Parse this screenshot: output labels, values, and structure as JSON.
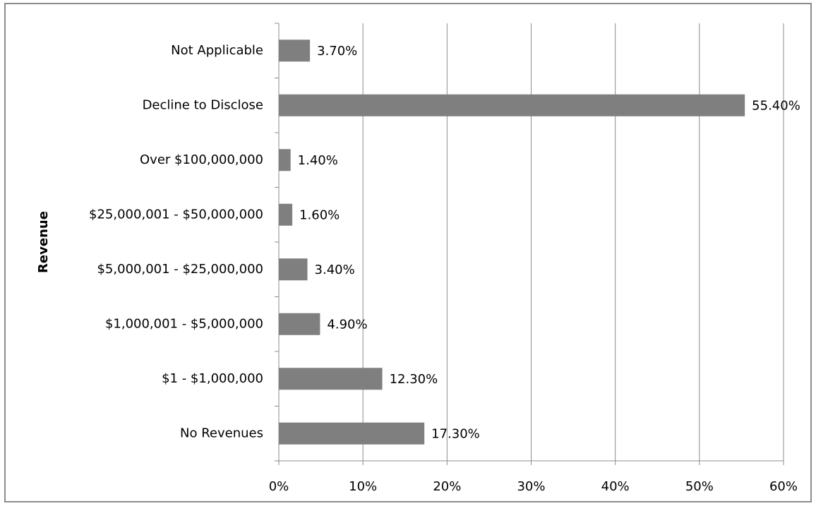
{
  "chart_data": {
    "type": "bar",
    "orientation": "horizontal",
    "y_axis_label": "Revenue",
    "categories": [
      "Not Applicable",
      "Decline to Disclose",
      "Over $100,000,000",
      "$25,000,001 - $50,000,000",
      "$5,000,001 - $25,000,000",
      "$1,000,001 - $5,000,000",
      "$1 - $1,000,000",
      "No Revenues"
    ],
    "values": [
      3.7,
      55.4,
      1.4,
      1.6,
      3.4,
      4.9,
      12.3,
      17.3
    ],
    "value_labels": [
      "3.70%",
      "55.40%",
      "1.40%",
      "1.60%",
      "3.40%",
      "4.90%",
      "12.30%",
      "17.30%"
    ],
    "color": "#7f7f7f",
    "xlim": [
      0,
      60
    ],
    "xticks": [
      {
        "value": 0,
        "label": "0%"
      },
      {
        "value": 10,
        "label": "10%"
      },
      {
        "value": 20,
        "label": "20%"
      },
      {
        "value": 30,
        "label": "30%"
      },
      {
        "value": 40,
        "label": "40%"
      },
      {
        "value": 50,
        "label": "50%"
      },
      {
        "value": 60,
        "label": "60%"
      }
    ],
    "grid": true
  }
}
